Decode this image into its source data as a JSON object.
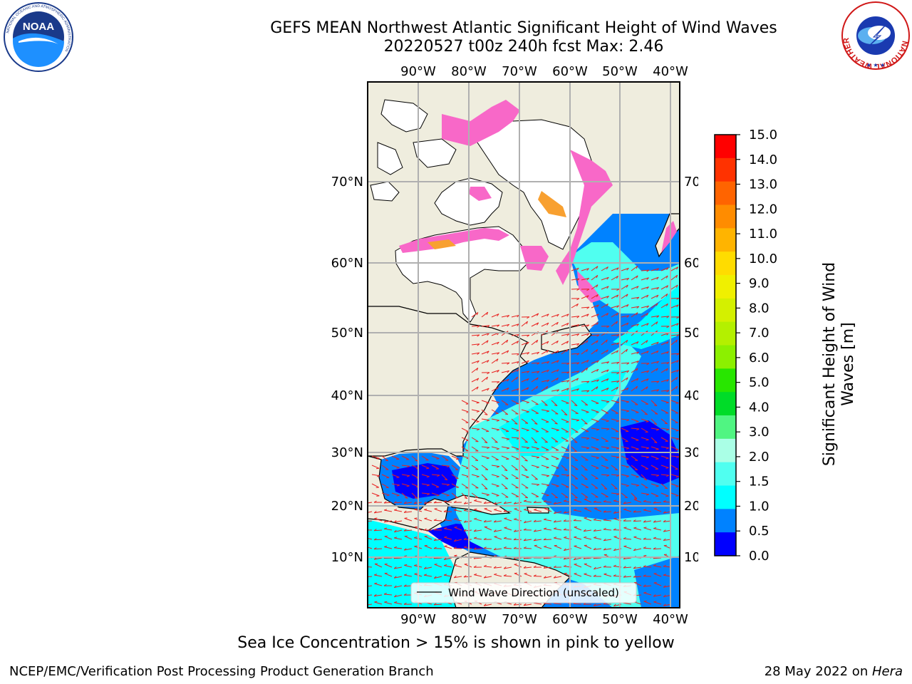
{
  "title": {
    "line1": "GEFS MEAN Northwest Atlantic Significant Height of Wind Waves",
    "line2": "20220527 t00z 240h fcst   Max: 2.46"
  },
  "logos": {
    "left": {
      "text": "NOAA",
      "ring_text": "NATIONAL OCEANIC AND ATMOSPHERIC ADMINISTRATION",
      "bottom_text": "U.S. DEPARTMENT OF COMMERCE"
    },
    "right": {
      "ring_text": "NATIONAL WEATHER SERVICE"
    }
  },
  "map": {
    "lon_labels": [
      "90°W",
      "80°W",
      "70°W",
      "60°W",
      "50°W",
      "40°W"
    ],
    "lat_labels": [
      "70°N",
      "60°N",
      "50°N",
      "40°N",
      "30°N",
      "20°N",
      "10°N"
    ],
    "legend_label": "Wind Wave Direction (unscaled)",
    "colors": {
      "land": "#efedde",
      "ice_free_land": "#ffffff",
      "arrow": "#e8201e",
      "ice_pink": "#f868c8",
      "ice_orange": "#f8a030",
      "gridline": "#b0b0b0"
    }
  },
  "colorbar": {
    "title": "Significant Height of Wind Waves [m]",
    "ticks": [
      "15.0",
      "14.0",
      "13.0",
      "12.0",
      "11.0",
      "10.0",
      "9.0",
      "8.0",
      "7.0",
      "6.0",
      "5.0",
      "4.0",
      "3.0",
      "2.0",
      "1.5",
      "1.0",
      "0.5",
      "0.0"
    ],
    "colors_top_to_bottom": [
      "#ff0000",
      "#ff3200",
      "#ff6400",
      "#ff8c00",
      "#ffb400",
      "#ffdc00",
      "#f0f000",
      "#d4f000",
      "#b4f000",
      "#8cf000",
      "#28e600",
      "#00dc28",
      "#50f582",
      "#aaffe6",
      "#50fff0",
      "#00ffff",
      "#0082ff",
      "#0000ff"
    ]
  },
  "footnote": "Sea Ice Concentration > 15% is shown in pink to yellow",
  "credit": {
    "left": "NCEP/EMC/Verification Post Processing Product Generation Branch",
    "right_prefix": "28 May 2022 on ",
    "right_host": "Hera"
  }
}
